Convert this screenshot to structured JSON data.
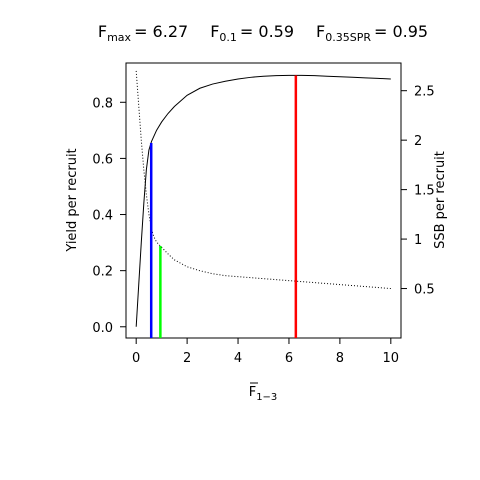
{
  "chart_data": {
    "type": "line",
    "title": {
      "parts": [
        {
          "symbol": "F",
          "sub": "max",
          "eq": "= 6.27"
        },
        {
          "symbol": "F",
          "sub": "0.1",
          "eq": "= 0.59"
        },
        {
          "symbol": "F",
          "sub": "0.35SPR",
          "eq": "= 0.95"
        }
      ]
    },
    "xlabel": {
      "main": "F",
      "sub": "1−3"
    },
    "ylabel_left": "Yield per recruit",
    "ylabel_right": "SSB per recruit",
    "x_ticks": [
      "0",
      "2",
      "4",
      "6",
      "8",
      "10"
    ],
    "y_left_ticks": [
      "0.0",
      "0.2",
      "0.4",
      "0.6",
      "0.8"
    ],
    "y_right_ticks": [
      "0.5",
      "1",
      "1.5",
      "2",
      "2.5"
    ],
    "xlim": [
      -0.4,
      10.4
    ],
    "ylim_left": [
      -0.04,
      0.94
    ],
    "ylim_right": [
      0,
      2.78
    ],
    "grid": false,
    "series": [
      {
        "axis": "left",
        "style": "solid",
        "color": "#000000",
        "x": [
          0,
          0.1,
          0.2,
          0.3,
          0.4,
          0.5,
          0.6,
          0.8,
          1.0,
          1.25,
          1.5,
          2.0,
          2.5,
          3.0,
          3.5,
          4.0,
          4.5,
          5.0,
          5.5,
          6.0,
          6.27,
          6.5,
          7.0,
          7.5,
          8.0,
          8.5,
          9.0,
          9.5,
          10.0
        ],
        "y": [
          0.0,
          0.15,
          0.3,
          0.44,
          0.56,
          0.63,
          0.66,
          0.7,
          0.73,
          0.76,
          0.785,
          0.825,
          0.85,
          0.865,
          0.875,
          0.883,
          0.889,
          0.893,
          0.895,
          0.896,
          0.896,
          0.896,
          0.895,
          0.893,
          0.891,
          0.889,
          0.887,
          0.885,
          0.883
        ]
      },
      {
        "axis": "right",
        "style": "dotted",
        "color": "#000000",
        "x": [
          0,
          0.1,
          0.2,
          0.3,
          0.4,
          0.5,
          0.6,
          0.7,
          0.8,
          0.95,
          1.25,
          1.5,
          2.0,
          2.5,
          3.0,
          3.5,
          4.0,
          5.0,
          6.0,
          7.0,
          8.0,
          9.0,
          10.0
        ],
        "y": [
          2.7,
          2.35,
          2.0,
          1.7,
          1.45,
          1.25,
          1.1,
          1.02,
          0.97,
          0.93,
          0.85,
          0.79,
          0.72,
          0.68,
          0.65,
          0.63,
          0.62,
          0.6,
          0.58,
          0.56,
          0.54,
          0.52,
          0.5
        ]
      }
    ],
    "reference_lines": [
      {
        "x": 0.59,
        "axis": "left",
        "y": 0.655,
        "color": "#0000ff"
      },
      {
        "x": 0.95,
        "axis": "right",
        "y": 0.93,
        "color": "#00ff00"
      },
      {
        "x": 6.27,
        "axis": "left",
        "y": 0.896,
        "color": "#ff0000"
      }
    ]
  }
}
